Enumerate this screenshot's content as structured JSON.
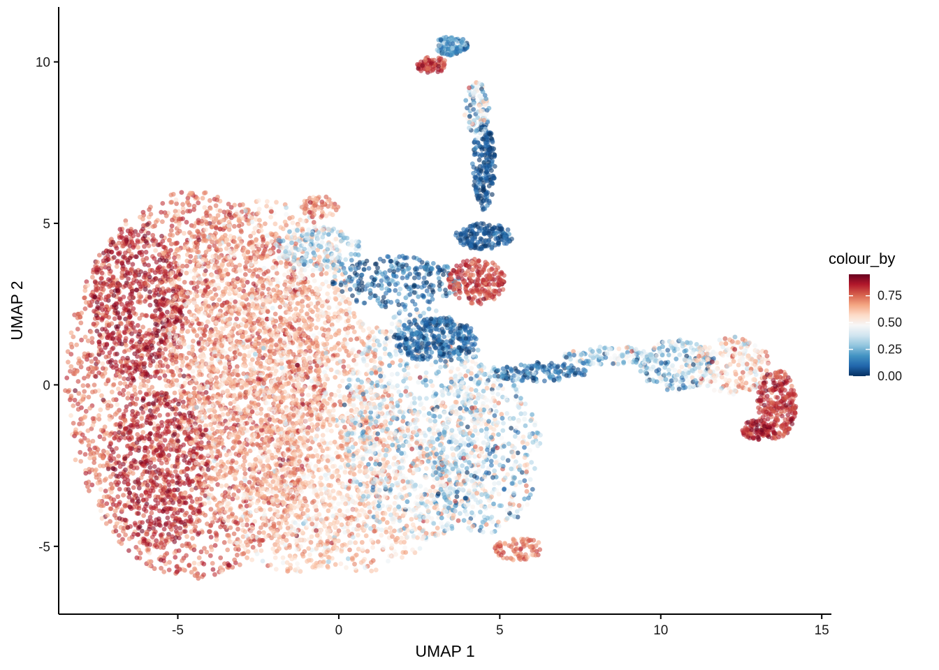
{
  "chart_data": {
    "type": "scatter",
    "xlabel": "UMAP 1",
    "ylabel": "UMAP 2",
    "xlim": [
      -8.7,
      15.3
    ],
    "ylim": [
      -7.1,
      11.7
    ],
    "x_ticks": [
      -5,
      0,
      5,
      10,
      15
    ],
    "x_tick_labels": [
      "-5",
      "0",
      "5",
      "10",
      "15"
    ],
    "y_ticks": [
      -5,
      0,
      5,
      10
    ],
    "y_tick_labels": [
      "-5",
      "0",
      "5",
      "10"
    ],
    "grid": false,
    "legend": {
      "title": "colour_by",
      "placement": "right",
      "breaks": [
        0.0,
        0.25,
        0.5,
        0.75
      ],
      "break_labels": [
        "0.00",
        "0.25",
        "0.50",
        "0.75"
      ],
      "range": [
        0.0,
        0.95
      ]
    },
    "colormap": [
      "#053061",
      "#2166ac",
      "#4393c3",
      "#92c5de",
      "#d1e5f0",
      "#f7f7f7",
      "#fddbc7",
      "#f4a582",
      "#d6604d",
      "#b2182b",
      "#67001f"
    ],
    "point_opacity": 0.6,
    "regions": [
      {
        "cx": -4.5,
        "cy": 0.0,
        "rx": 4.0,
        "ry": 6.0,
        "n": 2600,
        "v": 0.74,
        "vs": 0.08
      },
      {
        "cx": -6.2,
        "cy": 2.5,
        "rx": 1.5,
        "ry": 2.4,
        "n": 500,
        "v": 0.86,
        "vs": 0.05
      },
      {
        "cx": -5.6,
        "cy": -2.6,
        "rx": 1.6,
        "ry": 2.4,
        "n": 500,
        "v": 0.86,
        "vs": 0.05
      },
      {
        "cx": -2.5,
        "cy": 2.0,
        "rx": 3.0,
        "ry": 3.8,
        "n": 900,
        "v": 0.62,
        "vs": 0.1
      },
      {
        "cx": -1.5,
        "cy": -1.2,
        "rx": 3.2,
        "ry": 4.6,
        "n": 1400,
        "v": 0.6,
        "vs": 0.1
      },
      {
        "cx": 0.5,
        "cy": -3.0,
        "rx": 3.2,
        "ry": 2.8,
        "n": 800,
        "v": 0.58,
        "vs": 0.1
      },
      {
        "cx": 2.5,
        "cy": -1.2,
        "rx": 2.4,
        "ry": 3.6,
        "n": 900,
        "v": 0.4,
        "vs": 0.16
      },
      {
        "cx": 4.5,
        "cy": -2.0,
        "rx": 1.8,
        "ry": 2.6,
        "n": 500,
        "v": 0.38,
        "vs": 0.18
      },
      {
        "cx": 5.6,
        "cy": -5.1,
        "rx": 0.8,
        "ry": 0.35,
        "n": 80,
        "v": 0.72,
        "vs": 0.06
      },
      {
        "cx": 3.0,
        "cy": 1.4,
        "rx": 1.3,
        "ry": 0.7,
        "n": 320,
        "v": 0.08,
        "vs": 0.06
      },
      {
        "cx": 1.8,
        "cy": 3.2,
        "rx": 2.0,
        "ry": 0.8,
        "n": 260,
        "v": 0.12,
        "vs": 0.1
      },
      {
        "cx": -0.7,
        "cy": 4.2,
        "rx": 1.4,
        "ry": 0.7,
        "n": 200,
        "v": 0.35,
        "vs": 0.14
      },
      {
        "cx": 4.3,
        "cy": 3.2,
        "rx": 0.9,
        "ry": 0.7,
        "n": 220,
        "v": 0.8,
        "vs": 0.06
      },
      {
        "cx": 4.5,
        "cy": 4.6,
        "rx": 0.9,
        "ry": 0.4,
        "n": 160,
        "v": 0.06,
        "vs": 0.05
      },
      {
        "cx": 4.5,
        "cy": 6.8,
        "rx": 0.35,
        "ry": 1.4,
        "n": 200,
        "v": 0.06,
        "vs": 0.05
      },
      {
        "cx": 4.3,
        "cy": 8.5,
        "rx": 0.4,
        "ry": 0.9,
        "n": 100,
        "v": 0.35,
        "vs": 0.18
      },
      {
        "cx": 3.5,
        "cy": 10.5,
        "rx": 0.5,
        "ry": 0.3,
        "n": 120,
        "v": 0.2,
        "vs": 0.1
      },
      {
        "cx": 2.9,
        "cy": 9.9,
        "rx": 0.5,
        "ry": 0.25,
        "n": 70,
        "v": 0.82,
        "vs": 0.05
      },
      {
        "cx": 6.2,
        "cy": 0.4,
        "rx": 1.5,
        "ry": 0.3,
        "n": 140,
        "v": 0.12,
        "vs": 0.1
      },
      {
        "cx": 8.5,
        "cy": 0.9,
        "rx": 1.5,
        "ry": 0.3,
        "n": 130,
        "v": 0.35,
        "vs": 0.15
      },
      {
        "cx": 10.5,
        "cy": 0.6,
        "rx": 1.2,
        "ry": 0.8,
        "n": 200,
        "v": 0.3,
        "vs": 0.18
      },
      {
        "cx": 12.2,
        "cy": 0.6,
        "rx": 1.2,
        "ry": 0.9,
        "n": 220,
        "v": 0.55,
        "vs": 0.12
      },
      {
        "cx": 13.6,
        "cy": -0.6,
        "rx": 0.6,
        "ry": 1.1,
        "n": 260,
        "v": 0.82,
        "vs": 0.06
      },
      {
        "cx": 13.0,
        "cy": -1.4,
        "rx": 0.5,
        "ry": 0.3,
        "n": 80,
        "v": 0.86,
        "vs": 0.05
      },
      {
        "cx": -0.6,
        "cy": 5.5,
        "rx": 0.6,
        "ry": 0.35,
        "n": 60,
        "v": 0.7,
        "vs": 0.08
      }
    ]
  }
}
